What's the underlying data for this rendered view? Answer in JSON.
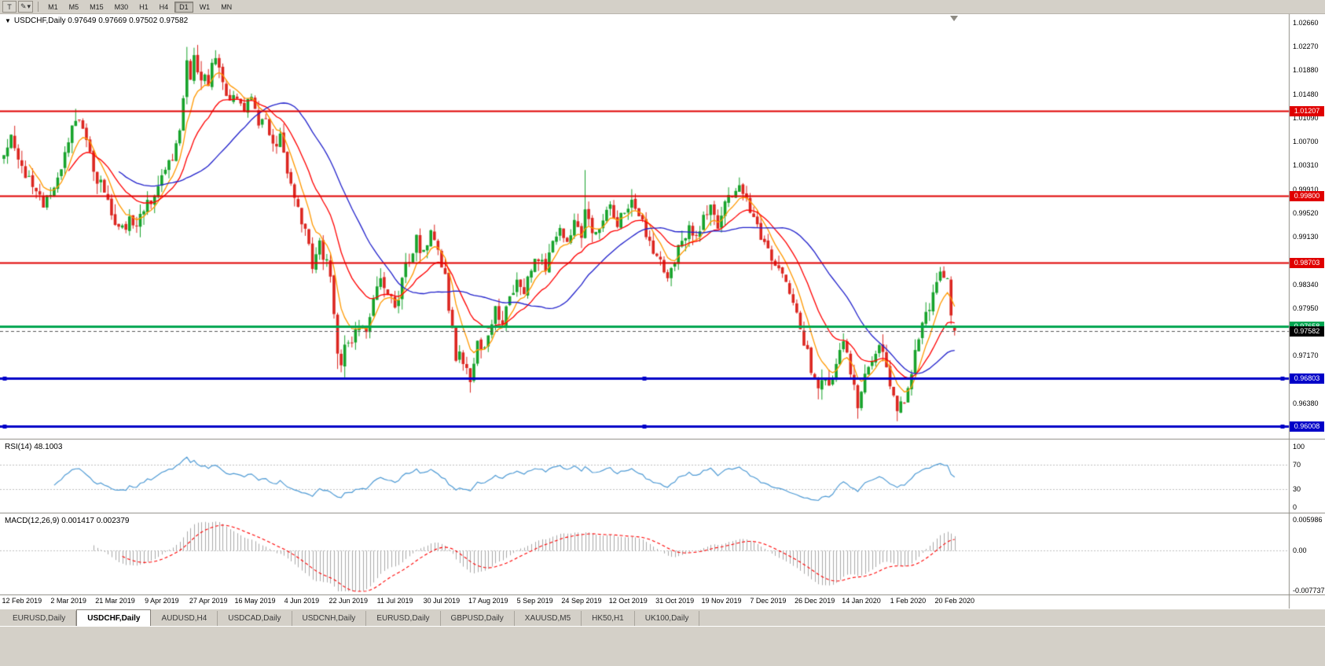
{
  "toolbar": {
    "text_tool_label": "T",
    "style_tool_icon": "✎",
    "dropdown_arrow": "▾",
    "timeframes": [
      "M1",
      "M5",
      "M15",
      "M30",
      "H1",
      "H4",
      "D1",
      "W1",
      "MN"
    ],
    "active_timeframe": "D1"
  },
  "chart": {
    "menu_arrow": "▼",
    "title": "USDCHF,Daily",
    "ohlc": "0.97649 0.97669 0.97502 0.97582",
    "price_axis_labels": [
      "1.02660",
      "1.02270",
      "1.01880",
      "1.01480",
      "1.01090",
      "1.00700",
      "1.00310",
      "0.99910",
      "0.99520",
      "0.99130",
      "0.98730",
      "0.98340",
      "0.97950",
      "0.97560",
      "0.97170",
      "0.96770",
      "0.96380"
    ],
    "price_max": 1.028,
    "price_min": 0.958,
    "hlines": [
      {
        "value": 1.01207,
        "label": "1.01207",
        "color": "#e00000",
        "width": 2,
        "selected": false
      },
      {
        "value": 0.998,
        "label": "0.99800",
        "color": "#e00000",
        "width": 2,
        "selected": false
      },
      {
        "value": 0.98703,
        "label": "0.98703",
        "color": "#e00000",
        "width": 2,
        "selected": false
      },
      {
        "value": 0.97658,
        "label": "0.97658",
        "color": "#00a651",
        "width": 3,
        "selected": false
      },
      {
        "value": 0.96803,
        "label": "0.96803",
        "color": "#0000c8",
        "width": 3,
        "selected": true
      },
      {
        "value": 0.96008,
        "label": "0.96008",
        "color": "#0000c8",
        "width": 3,
        "selected": true
      }
    ],
    "bid": {
      "value": 0.97582,
      "label": "0.97582",
      "color": "#000000"
    },
    "date_labels": [
      "12 Feb 2019",
      "2 Mar 2019",
      "21 Mar 2019",
      "9 Apr 2019",
      "27 Apr 2019",
      "16 May 2019",
      "4 Jun 2019",
      "22 Jun 2019",
      "11 Jul 2019",
      "30 Jul 2019",
      "17 Aug 2019",
      "5 Sep 2019",
      "24 Sep 2019",
      "12 Oct 2019",
      "31 Oct 2019",
      "19 Nov 2019",
      "7 Dec 2019",
      "26 Dec 2019",
      "14 Jan 2020",
      "1 Feb 2020",
      "20 Feb 2020"
    ],
    "candle_up_color": "#17a32b",
    "candle_down_color": "#dc2620"
  },
  "rsi": {
    "label": "RSI(14) 48.1003",
    "line_color": "#4f9bd5",
    "axis_labels": [
      "100",
      "70",
      "30",
      "0"
    ],
    "levels": [
      100,
      70,
      30,
      0
    ],
    "dashed_levels": [
      70,
      30
    ]
  },
  "macd": {
    "label": "MACD(12,26,9) 0.001417 0.002379",
    "hist_color": "#a9a9a9",
    "signal_color": "#ff0000",
    "axis_top": 0.005986,
    "axis_bottom": -0.007737,
    "axis_labels": [
      "0.005986",
      "0.00",
      "-0.007737"
    ]
  },
  "tabs": {
    "items": [
      "EURUSD,Daily",
      "USDCHF,Daily",
      "AUDUSD,H4",
      "USDCAD,Daily",
      "USDCNH,Daily",
      "EURUSD,Daily",
      "GBPUSD,Daily",
      "XAUUSD,M5",
      "HK50,H1",
      "UK100,Daily"
    ],
    "active_index": 1
  },
  "chart_data": {
    "type": "candlestick+indicators",
    "symbol": "USDCHF",
    "timeframe": "Daily",
    "num_candles": 266,
    "seed": 11,
    "last_candle": {
      "open": 0.97649,
      "high": 0.97669,
      "low": 0.97502,
      "close": 0.97582
    },
    "ma_lines": [
      {
        "color": "#ff9900",
        "method": "ema",
        "period": 7
      },
      {
        "color": "#ff0000",
        "method": "ema",
        "period": 18
      },
      {
        "color": "#2222cc",
        "method": "sma",
        "period": 32
      }
    ],
    "anchors": [
      [
        0,
        1.0052
      ],
      [
        2,
        1.0072
      ],
      [
        5,
        1.0028
      ],
      [
        8,
        0.9992
      ],
      [
        11,
        0.9966
      ],
      [
        13,
        0.999
      ],
      [
        15,
        1.0008
      ],
      [
        17,
        1.0052
      ],
      [
        19,
        1.0098
      ],
      [
        20,
        1.0112
      ],
      [
        22,
        1.0082
      ],
      [
        24,
        1.0044
      ],
      [
        26,
        1.001
      ],
      [
        28,
        0.9994
      ],
      [
        30,
        0.9946
      ],
      [
        33,
        0.9922
      ],
      [
        35,
        0.9938
      ],
      [
        37,
        0.9925
      ],
      [
        39,
        0.9958
      ],
      [
        41,
        0.9976
      ],
      [
        43,
        0.9998
      ],
      [
        45,
        1.0018
      ],
      [
        47,
        1.0048
      ],
      [
        48,
        1.0065
      ],
      [
        49,
        1.009
      ],
      [
        50,
        1.015
      ],
      [
        51,
        1.0195
      ],
      [
        52,
        1.018
      ],
      [
        53,
        1.0205
      ],
      [
        54,
        1.018
      ],
      [
        55,
        1.0162
      ],
      [
        56,
        1.0185
      ],
      [
        57,
        1.017
      ],
      [
        58,
        1.0198
      ],
      [
        59,
        1.0205
      ],
      [
        60,
        1.0188
      ],
      [
        61,
        1.0162
      ],
      [
        63,
        1.0135
      ],
      [
        65,
        1.015
      ],
      [
        67,
        1.0125
      ],
      [
        69,
        1.014
      ],
      [
        71,
        1.0095
      ],
      [
        73,
        1.0105
      ],
      [
        75,
        1.0062
      ],
      [
        77,
        1.0075
      ],
      [
        79,
        1.002
      ],
      [
        81,
        0.997
      ],
      [
        83,
        0.9935
      ],
      [
        85,
        0.9905
      ],
      [
        86,
        0.9868
      ],
      [
        88,
        0.9898
      ],
      [
        90,
        0.9868
      ],
      [
        91,
        0.984
      ],
      [
        92,
        0.979
      ],
      [
        93,
        0.9715
      ],
      [
        94,
        0.9702
      ],
      [
        95,
        0.9728
      ],
      [
        97,
        0.9748
      ],
      [
        99,
        0.977
      ],
      [
        101,
        0.9758
      ],
      [
        103,
        0.9812
      ],
      [
        105,
        0.9845
      ],
      [
        107,
        0.9822
      ],
      [
        109,
        0.9795
      ],
      [
        111,
        0.9842
      ],
      [
        113,
        0.988
      ],
      [
        115,
        0.9908
      ],
      [
        117,
        0.9882
      ],
      [
        119,
        0.9922
      ],
      [
        121,
        0.9888
      ],
      [
        123,
        0.9845
      ],
      [
        124,
        0.98
      ],
      [
        125,
        0.9755
      ],
      [
        126,
        0.9705
      ],
      [
        127,
        0.9732
      ],
      [
        128,
        0.9712
      ],
      [
        129,
        0.9688
      ],
      [
        130,
        0.9672
      ],
      [
        131,
        0.9712
      ],
      [
        132,
        0.9745
      ],
      [
        133,
        0.9722
      ],
      [
        135,
        0.9758
      ],
      [
        137,
        0.9792
      ],
      [
        139,
        0.9768
      ],
      [
        141,
        0.9812
      ],
      [
        143,
        0.9845
      ],
      [
        145,
        0.9822
      ],
      [
        147,
        0.9858
      ],
      [
        149,
        0.988
      ],
      [
        151,
        0.9862
      ],
      [
        153,
        0.9898
      ],
      [
        155,
        0.9925
      ],
      [
        157,
        0.9905
      ],
      [
        159,
        0.9938
      ],
      [
        161,
        0.9912
      ],
      [
        162,
        0.9968
      ],
      [
        163,
        0.994
      ],
      [
        165,
        0.9912
      ],
      [
        167,
        0.9942
      ],
      [
        169,
        0.9958
      ],
      [
        171,
        0.9935
      ],
      [
        173,
        0.9952
      ],
      [
        175,
        0.9972
      ],
      [
        177,
        0.9948
      ],
      [
        179,
        0.9922
      ],
      [
        181,
        0.9895
      ],
      [
        183,
        0.9868
      ],
      [
        185,
        0.9852
      ],
      [
        187,
        0.9878
      ],
      [
        189,
        0.9905
      ],
      [
        191,
        0.9928
      ],
      [
        193,
        0.9912
      ],
      [
        195,
        0.9942
      ],
      [
        197,
        0.9958
      ],
      [
        199,
        0.9935
      ],
      [
        201,
        0.9962
      ],
      [
        203,
        0.9985
      ],
      [
        205,
        0.9992
      ],
      [
        207,
        0.9968
      ],
      [
        209,
        0.994
      ],
      [
        211,
        0.9912
      ],
      [
        213,
        0.989
      ],
      [
        215,
        0.9868
      ],
      [
        217,
        0.9845
      ],
      [
        219,
        0.982
      ],
      [
        221,
        0.979
      ],
      [
        223,
        0.9742
      ],
      [
        225,
        0.9698
      ],
      [
        227,
        0.9662
      ],
      [
        228,
        0.968
      ],
      [
        230,
        0.9665
      ],
      [
        232,
        0.9705
      ],
      [
        234,
        0.9732
      ],
      [
        236,
        0.9695
      ],
      [
        237,
        0.9668
      ],
      [
        238,
        0.9632
      ],
      [
        239,
        0.9655
      ],
      [
        240,
        0.968
      ],
      [
        242,
        0.9712
      ],
      [
        244,
        0.9742
      ],
      [
        245,
        0.9722
      ],
      [
        246,
        0.9688
      ],
      [
        247,
        0.9668
      ],
      [
        248,
        0.9645
      ],
      [
        249,
        0.9618
      ],
      [
        250,
        0.9632
      ],
      [
        251,
        0.9648
      ],
      [
        252,
        0.9672
      ],
      [
        253,
        0.9695
      ],
      [
        254,
        0.9718
      ],
      [
        255,
        0.9745
      ],
      [
        256,
        0.9768
      ],
      [
        257,
        0.9788
      ],
      [
        258,
        0.9802
      ],
      [
        259,
        0.9825
      ],
      [
        260,
        0.984
      ],
      [
        261,
        0.9848
      ],
      [
        262,
        0.9838
      ],
      [
        263,
        0.9846
      ],
      [
        264,
        0.9792
      ],
      [
        265,
        0.97582
      ]
    ],
    "spikes": [
      {
        "i": 20,
        "high": 1.0124
      },
      {
        "i": 51,
        "high": 1.0226
      },
      {
        "i": 59,
        "high": 1.0215
      },
      {
        "i": 93,
        "low": 0.9695
      },
      {
        "i": 130,
        "low": 0.9656
      },
      {
        "i": 162,
        "high": 1.0023
      },
      {
        "i": 227,
        "low": 0.9645
      },
      {
        "i": 238,
        "low": 0.9613
      },
      {
        "i": 249,
        "low": 0.9609
      }
    ]
  }
}
